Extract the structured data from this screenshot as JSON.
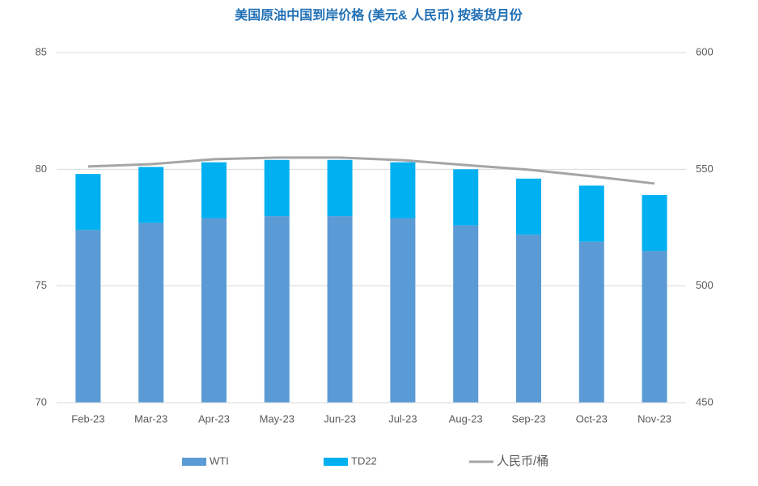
{
  "chart_data": {
    "type": "bar-line",
    "title": "美国原油中国到岸价格 (美元& 人民币) 按装货月份",
    "categories": [
      "Feb-23",
      "Mar-23",
      "Apr-23",
      "May-23",
      "Jun-23",
      "Jul-23",
      "Aug-23",
      "Sep-23",
      "Oct-23",
      "Nov-23"
    ],
    "series": [
      {
        "name": "WTI",
        "color": "#5b9bd5",
        "type": "bar",
        "values": [
          77.4,
          77.7,
          77.9,
          78.0,
          78.0,
          77.9,
          77.6,
          77.2,
          76.9,
          76.5
        ]
      },
      {
        "name": "TD22",
        "color": "#00b0f0",
        "type": "bar",
        "values": [
          2.4,
          2.4,
          2.4,
          2.4,
          2.4,
          2.4,
          2.4,
          2.4,
          2.4,
          2.4
        ]
      },
      {
        "name": "人民币/桶",
        "color": "#a5a5a5",
        "type": "line",
        "axis": "y2",
        "values": [
          551.2,
          552.2,
          554.3,
          555.0,
          555.0,
          553.9,
          551.8,
          549.8,
          547.0,
          543.9
        ]
      }
    ],
    "ylim": [
      70,
      85
    ],
    "yticks": [
      70,
      75,
      80,
      85
    ],
    "y2lim": [
      450,
      600
    ],
    "y2ticks": [
      450,
      500,
      550,
      600
    ],
    "grid": true,
    "legend": "bottom"
  }
}
